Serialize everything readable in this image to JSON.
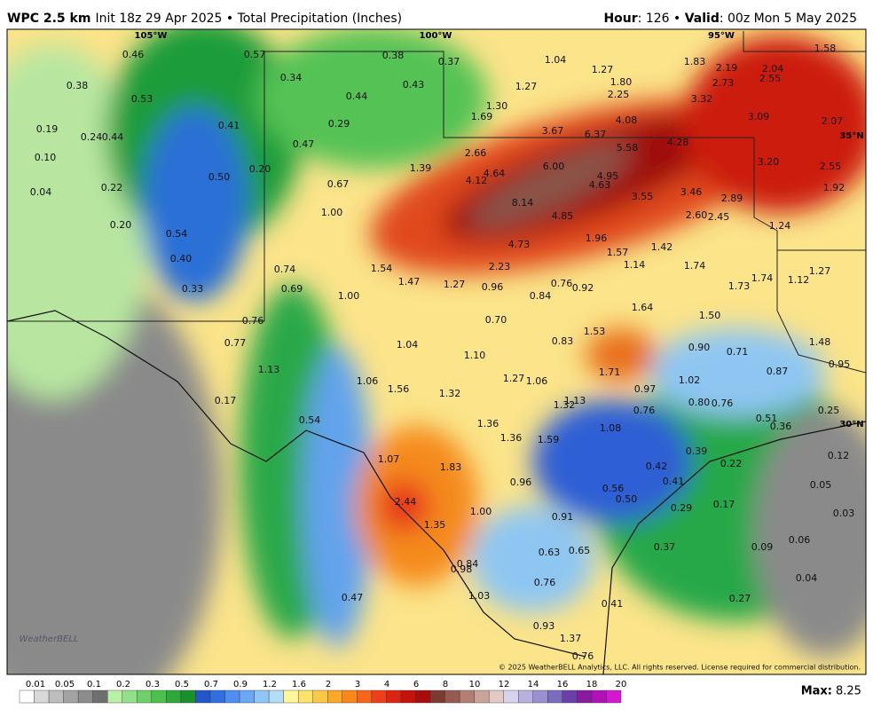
{
  "header": {
    "model": "WPC 2.5 km",
    "info": "Init 18z 29 Apr 2025 • Total Precipitation (Inches)",
    "right": [
      "Hour",
      ": 126 • ",
      "Valid",
      ": 00z Mon 5 May 2025"
    ]
  },
  "map": {
    "meridians": [
      "105°W",
      "100°W",
      "95°W"
    ],
    "parallels": [
      "35°N",
      "30°N"
    ],
    "labels": [
      "0.46",
      "0.57",
      "0.38",
      "0.37",
      "1.04",
      "1.27",
      "1.83",
      "2.19",
      "2.04",
      "1.58",
      "0.38",
      "0.53",
      "0.34",
      "0.44",
      "0.43",
      "1.27",
      "1.80",
      "2.73",
      "2.55",
      "2.25",
      "3.32",
      "0.41",
      "0.29",
      "1.30",
      "1.69",
      "4.08",
      "3.09",
      "2.07",
      "0.19",
      "0.24",
      "0.44",
      "0.47",
      "3.67",
      "6.37",
      "5.58",
      "4.28",
      "0.10",
      "2.66",
      "0.20",
      "1.39",
      "6.00",
      "3.20",
      "2.55",
      "0.04",
      "0.22",
      "0.50",
      "0.67",
      "4.64",
      "4.12",
      "4.95",
      "4.63",
      "1.92",
      "1.00",
      "8.14",
      "3.55",
      "3.46",
      "2.89",
      "0.20",
      "4.85",
      "2.60",
      "2.45",
      "1.24",
      "0.54",
      "4.73",
      "1.96",
      "1.57",
      "1.42",
      "0.40",
      "1.54",
      "2.23",
      "1.14",
      "1.74",
      "1.27",
      "0.74",
      "1.74",
      "1.12",
      "0.33",
      "0.69",
      "1.47",
      "1.27",
      "0.96",
      "0.76",
      "0.92",
      "1.73",
      "1.00",
      "0.84",
      "1.64",
      "1.50",
      "0.76",
      "0.70",
      "1.53",
      "0.83",
      "0.77",
      "1.04",
      "1.48",
      "0.90",
      "0.71",
      "1.10",
      "1.13",
      "1.71",
      "0.87",
      "0.95",
      "1.06",
      "1.27",
      "1.06",
      "1.02",
      "1.56",
      "1.32",
      "0.97",
      "0.17",
      "1.13",
      "1.32",
      "0.80",
      "0.76",
      "0.76",
      "0.25",
      "0.54",
      "1.36",
      "0.51",
      "0.36",
      "1.08",
      "1.36",
      "1.59",
      "0.39",
      "0.12",
      "1.07",
      "1.83",
      "0.22",
      "0.42",
      "0.96",
      "0.41",
      "0.05",
      "0.56",
      "0.50",
      "2.44",
      "0.29",
      "0.17",
      "1.00",
      "0.03",
      "0.91",
      "1.35",
      "0.06",
      "0.37",
      "0.09",
      "0.63",
      "0.65",
      "0.84",
      "0.98",
      "0.04",
      "0.76",
      "1.03",
      "0.47",
      "0.27",
      "0.41",
      "0.93",
      "1.37",
      "0.76"
    ]
  },
  "copyright": "© 2025 WeatherBELL Analytics, LLC. All rights reserved. License required for commercial distribution.",
  "logo": "WeatherBELL",
  "colorbar": {
    "ticks": [
      "0.01",
      "0.05",
      "0.1",
      "0.2",
      "0.3",
      "0.5",
      "0.7",
      "0.9",
      "1.2",
      "1.6",
      "2",
      "3",
      "4",
      "6",
      "8",
      "10",
      "12",
      "14",
      "16",
      "18",
      "20"
    ]
  },
  "max": {
    "label": "Max:",
    "value": "8.25"
  }
}
